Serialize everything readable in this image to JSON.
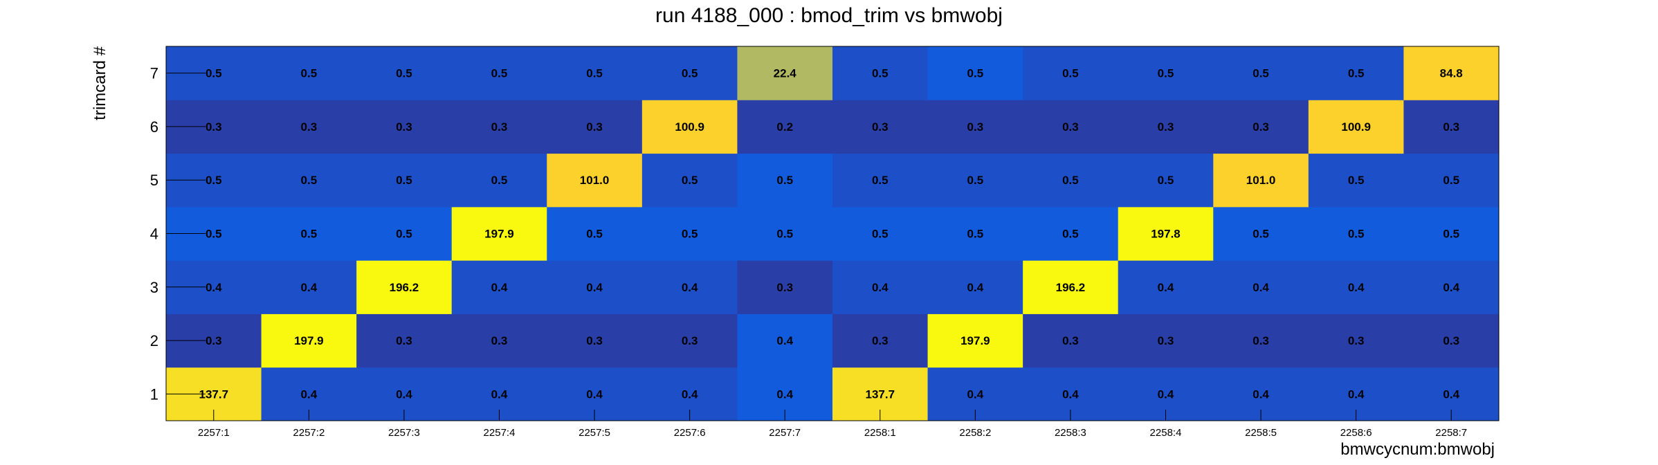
{
  "chart_data": {
    "type": "heatmap",
    "title": "run 4188_000 : bmod_trim vs bmwobj",
    "xlabel": "bmwcycnum:bmwobj",
    "ylabel": "trimcard #",
    "x_categories": [
      "2257:1",
      "2257:2",
      "2257:3",
      "2257:4",
      "2257:5",
      "2257:6",
      "2257:7",
      "2258:1",
      "2258:2",
      "2258:3",
      "2258:4",
      "2258:5",
      "2258:6",
      "2258:7"
    ],
    "y_categories": [
      "1",
      "2",
      "3",
      "4",
      "5",
      "6",
      "7"
    ],
    "values": [
      [
        "137.7",
        "0.4",
        "0.4",
        "0.4",
        "0.4",
        "0.4",
        "0.4",
        "137.7",
        "0.4",
        "0.4",
        "0.4",
        "0.4",
        "0.4",
        "0.4"
      ],
      [
        "0.3",
        "197.9",
        "0.3",
        "0.3",
        "0.3",
        "0.3",
        "0.4",
        "0.3",
        "197.9",
        "0.3",
        "0.3",
        "0.3",
        "0.3",
        "0.3"
      ],
      [
        "0.4",
        "0.4",
        "196.2",
        "0.4",
        "0.4",
        "0.4",
        "0.3",
        "0.4",
        "0.4",
        "196.2",
        "0.4",
        "0.4",
        "0.4",
        "0.4"
      ],
      [
        "0.5",
        "0.5",
        "0.5",
        "197.9",
        "0.5",
        "0.5",
        "0.5",
        "0.5",
        "0.5",
        "0.5",
        "197.8",
        "0.5",
        "0.5",
        "0.5"
      ],
      [
        "0.5",
        "0.5",
        "0.5",
        "0.5",
        "101.0",
        "0.5",
        "0.5",
        "0.5",
        "0.5",
        "0.5",
        "0.5",
        "101.0",
        "0.5",
        "0.5"
      ],
      [
        "0.3",
        "0.3",
        "0.3",
        "0.3",
        "0.3",
        "100.9",
        "0.2",
        "0.3",
        "0.3",
        "0.3",
        "0.3",
        "0.3",
        "100.9",
        "0.3"
      ],
      [
        "0.5",
        "0.5",
        "0.5",
        "0.5",
        "0.5",
        "0.5",
        "22.4",
        "0.5",
        "0.5",
        "0.5",
        "0.5",
        "0.5",
        "0.5",
        "84.8"
      ]
    ],
    "cell_colors": [
      [
        "#f7df26",
        "#1d50c8",
        "#1d50c8",
        "#1d50c8",
        "#1d50c8",
        "#1d50c8",
        "#125bdd",
        "#f7df26",
        "#1d50c8",
        "#1d50c8",
        "#1d50c8",
        "#1d50c8",
        "#1d50c8",
        "#1d50c8"
      ],
      [
        "#2a3ea8",
        "#f8f90e",
        "#2a3ea8",
        "#2a3ea8",
        "#2a3ea8",
        "#2a3ea8",
        "#125bdd",
        "#2a3ea8",
        "#f8f90e",
        "#2a3ea8",
        "#2a3ea8",
        "#2a3ea8",
        "#2a3ea8",
        "#2a3ea8"
      ],
      [
        "#1d50c8",
        "#1d50c8",
        "#f8f90e",
        "#1d50c8",
        "#1d50c8",
        "#1d50c8",
        "#2a3ea8",
        "#1d50c8",
        "#1d50c8",
        "#f8f90e",
        "#1d50c8",
        "#1d50c8",
        "#1d50c8",
        "#1d50c8"
      ],
      [
        "#125bdd",
        "#125bdd",
        "#125bdd",
        "#f8f90e",
        "#125bdd",
        "#125bdd",
        "#125bdd",
        "#125bdd",
        "#125bdd",
        "#125bdd",
        "#f8f90e",
        "#125bdd",
        "#125bdd",
        "#125bdd"
      ],
      [
        "#1d50c8",
        "#1d50c8",
        "#1d50c8",
        "#1d50c8",
        "#fdd12c",
        "#1d50c8",
        "#125bdd",
        "#1d50c8",
        "#1d50c8",
        "#1d50c8",
        "#1d50c8",
        "#fdd12c",
        "#1d50c8",
        "#1d50c8"
      ],
      [
        "#2a3ea8",
        "#2a3ea8",
        "#2a3ea8",
        "#2a3ea8",
        "#2a3ea8",
        "#fdd12c",
        "#2a3ea8",
        "#2a3ea8",
        "#2a3ea8",
        "#2a3ea8",
        "#2a3ea8",
        "#2a3ea8",
        "#fdd12c",
        "#2a3ea8"
      ],
      [
        "#1d50c8",
        "#1d50c8",
        "#1d50c8",
        "#1d50c8",
        "#1d50c8",
        "#1d50c8",
        "#b1ba62",
        "#1d50c8",
        "#125bdd",
        "#1d50c8",
        "#1d50c8",
        "#1d50c8",
        "#1d50c8",
        "#fdd12c"
      ]
    ],
    "grid": false,
    "legend": "none"
  }
}
